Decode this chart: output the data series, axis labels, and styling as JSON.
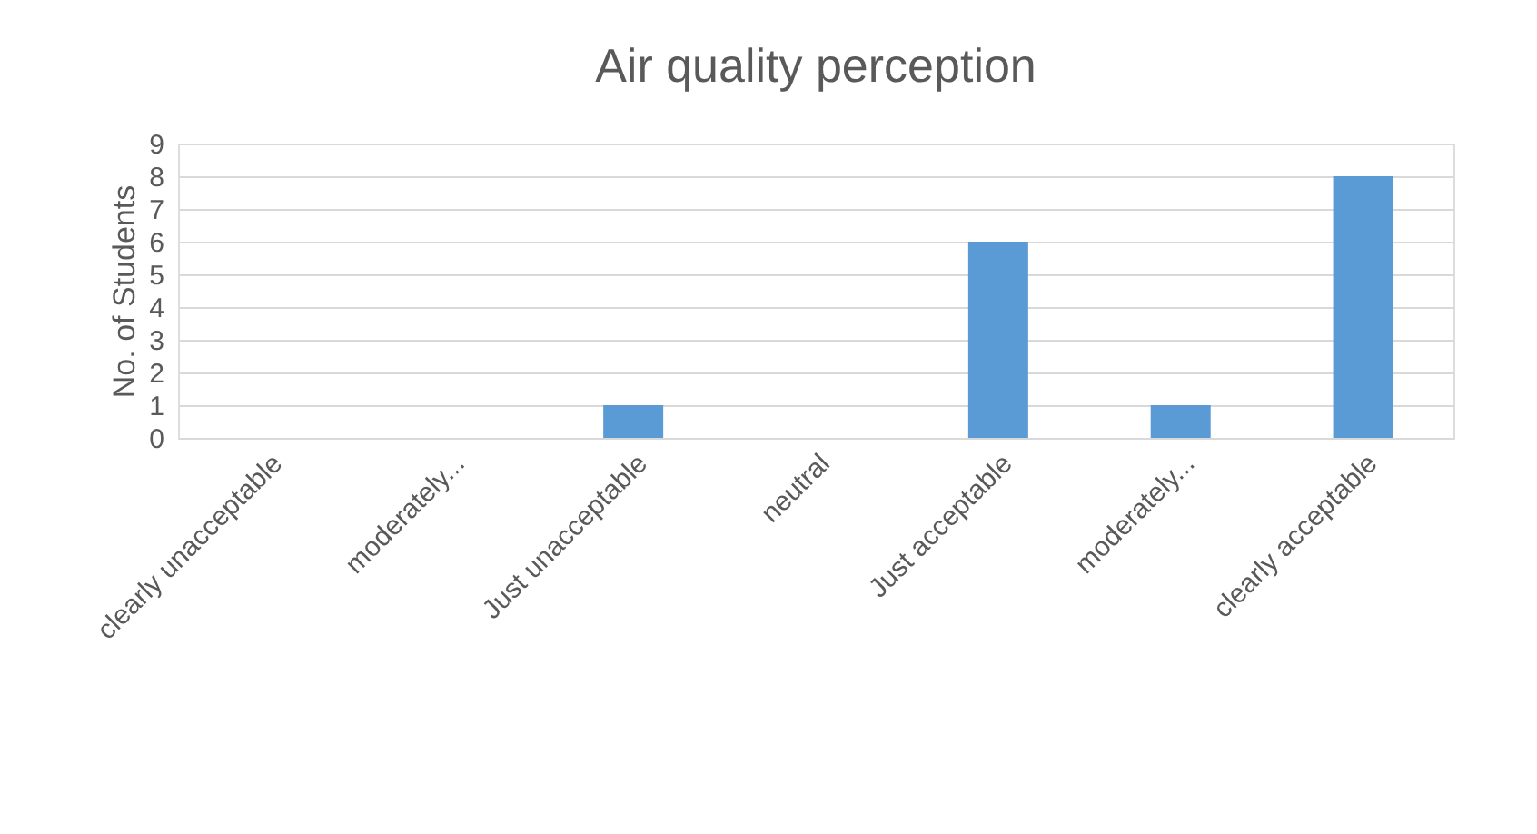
{
  "chart_data": {
    "type": "bar",
    "title": "Air quality perception",
    "ylabel": "No. of Students",
    "categories": [
      "clearly unacceptable",
      "moderately...",
      "Just unacceptable",
      "neutral",
      "Just acceptable",
      "moderately...",
      "clearly acceptable"
    ],
    "values": [
      0,
      0,
      1,
      0,
      6,
      1,
      8
    ],
    "color": "#5b9bd5",
    "ylim": [
      0,
      9
    ],
    "yticks": [
      0,
      1,
      2,
      3,
      4,
      5,
      6,
      7,
      8,
      9
    ],
    "grid": "y"
  }
}
